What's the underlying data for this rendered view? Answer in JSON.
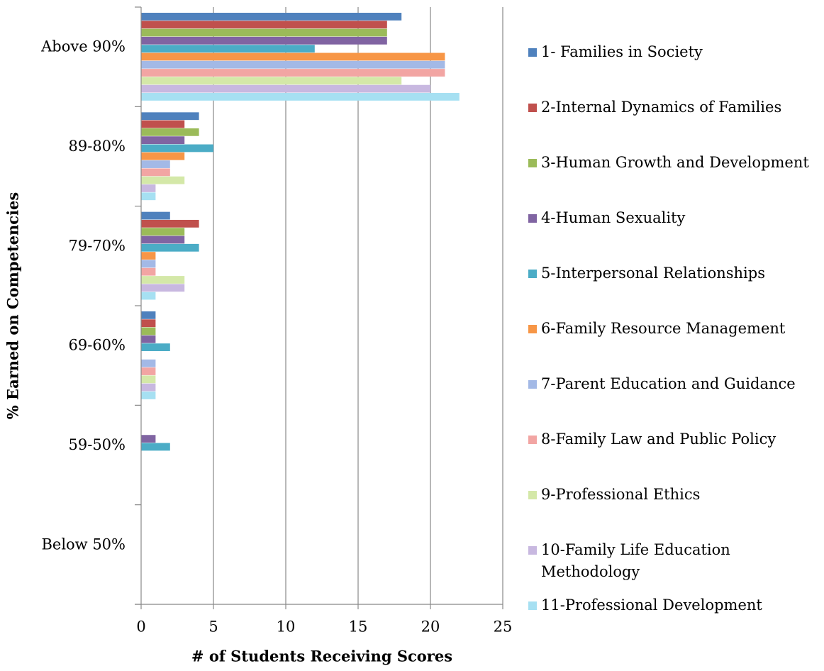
{
  "chart_data": {
    "type": "barh",
    "xlabel": "# of Students Receiving Scores",
    "ylabel": "% Earned on Competencies",
    "categories": [
      "Above 90%",
      "89-80%",
      "79-70%",
      "69-60%",
      "59-50%",
      "Below 50%"
    ],
    "series": [
      {
        "name": "1- Families in Society",
        "color": "#4f81bd",
        "values": [
          18,
          4,
          2,
          1,
          0,
          0
        ]
      },
      {
        "name": "2-Internal Dynamics of Families",
        "color": "#c0504d",
        "values": [
          17,
          3,
          4,
          1,
          0,
          0
        ]
      },
      {
        "name": "3-Human Growth and Development",
        "color": "#9bbb59",
        "values": [
          17,
          4,
          3,
          1,
          0,
          0
        ]
      },
      {
        "name": "4-Human Sexuality",
        "color": "#8064a2",
        "values": [
          17,
          3,
          3,
          1,
          1,
          0
        ]
      },
      {
        "name": "5-Interpersonal Relationships",
        "color": "#4bacc6",
        "values": [
          12,
          5,
          4,
          2,
          2,
          0
        ]
      },
      {
        "name": "6-Family Resource Management",
        "color": "#f79646",
        "values": [
          21,
          3,
          1,
          0,
          0,
          0
        ]
      },
      {
        "name": "7-Parent Education and Guidance",
        "color": "#a3b9e6",
        "values": [
          21,
          2,
          1,
          1,
          0,
          0
        ]
      },
      {
        "name": "8-Family Law and Public Policy",
        "color": "#f2a5a3",
        "values": [
          21,
          2,
          1,
          1,
          0,
          0
        ]
      },
      {
        "name": "9-Professional Ethics",
        "color": "#d4e8a8",
        "values": [
          18,
          3,
          3,
          1,
          0,
          0
        ]
      },
      {
        "name": "10-Family Life Education Methodology",
        "color": "#c8b8e0",
        "values": [
          20,
          1,
          3,
          1,
          0,
          0
        ]
      },
      {
        "name": "11-Professional Development",
        "color": "#a6e0f2",
        "values": [
          22,
          1,
          1,
          1,
          0,
          0
        ]
      }
    ],
    "xlim": [
      0,
      25
    ],
    "xticks": [
      0,
      5,
      10,
      15,
      20,
      25
    ],
    "grid": true,
    "legend": "right"
  }
}
